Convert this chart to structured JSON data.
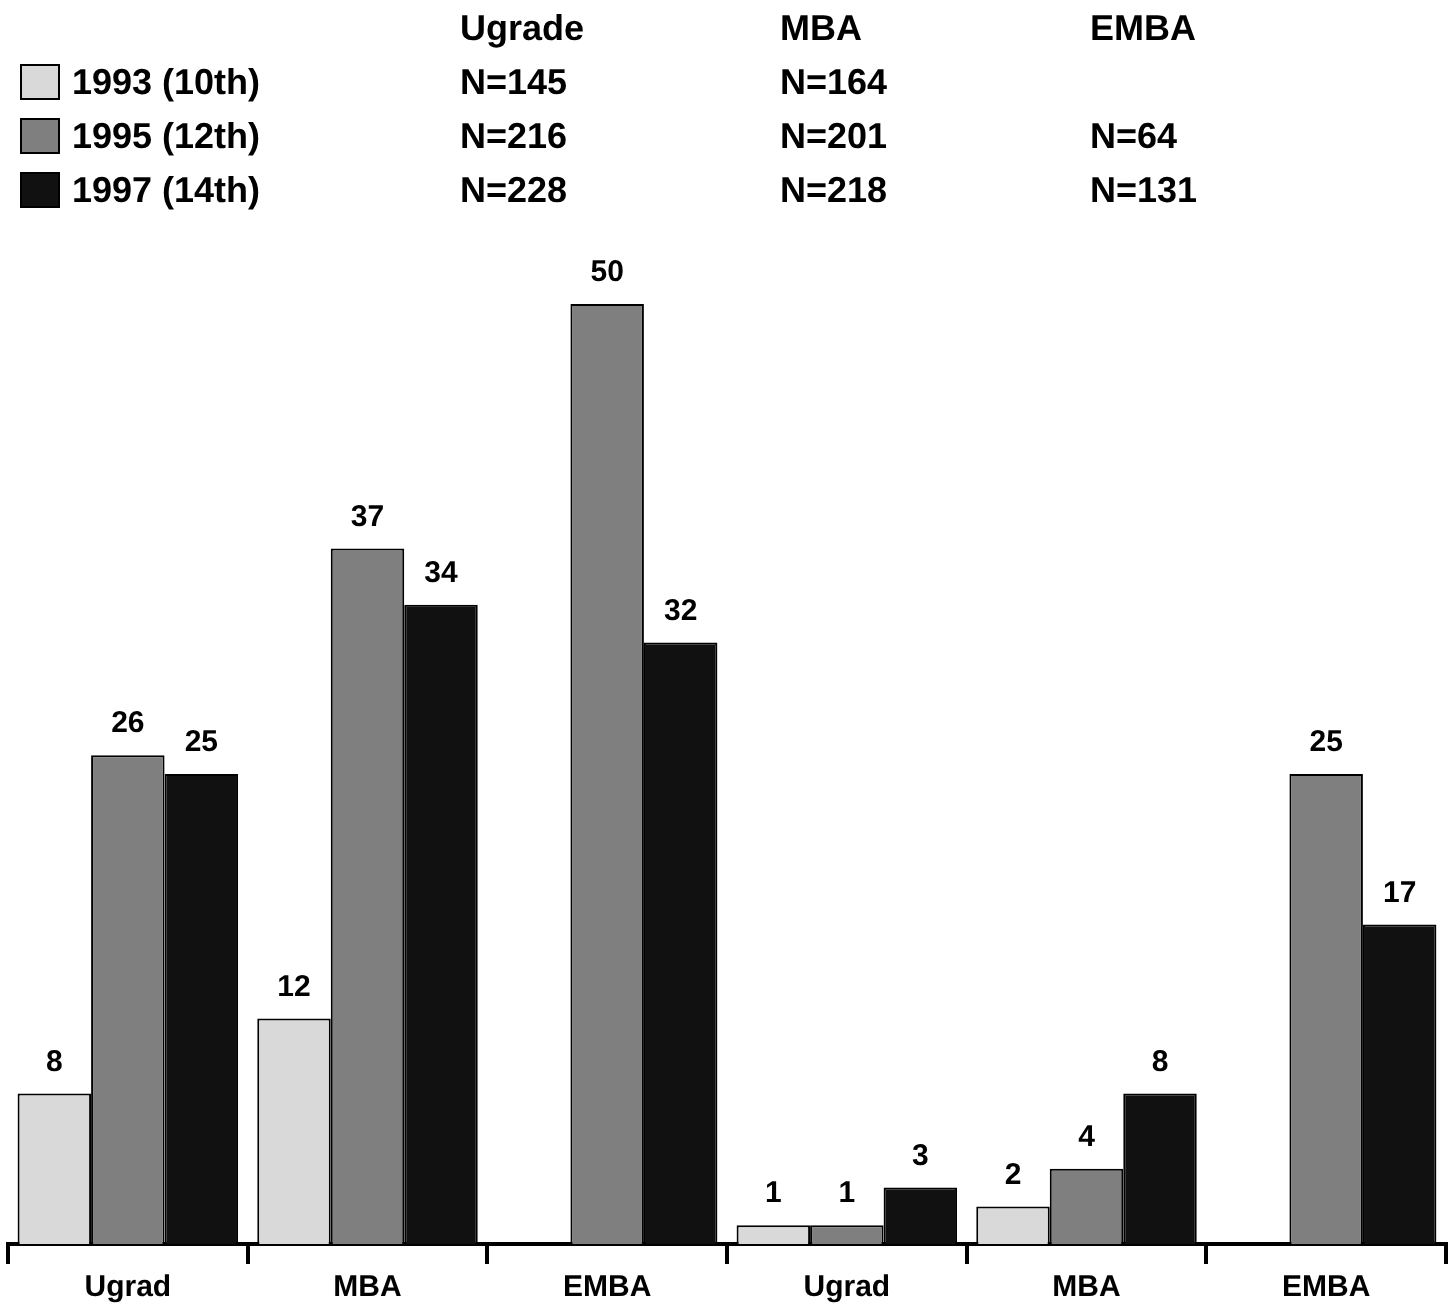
{
  "chart_data": {
    "type": "bar",
    "categories": [
      "Ugrad",
      "MBA",
      "EMBA",
      "Ugrad",
      "MBA",
      "EMBA"
    ],
    "series": [
      {
        "name": "1993 (10th)",
        "color": "#d9d9d9",
        "values": [
          8,
          12,
          null,
          1,
          2,
          null
        ]
      },
      {
        "name": "1995 (12th)",
        "color": "#7f7f7f",
        "values": [
          26,
          37,
          50,
          1,
          4,
          25
        ]
      },
      {
        "name": "1997 (14th)",
        "color": "#111111",
        "values": [
          25,
          34,
          32,
          3,
          8,
          17
        ]
      }
    ],
    "data_labels": true,
    "legend": "top left",
    "annotations": [
      "Ugrade",
      "MBA",
      "EMBA",
      "N=145",
      "N=164",
      "N=216",
      "N=201",
      "N=64",
      "N=228",
      "N=218",
      "N=131"
    ]
  }
}
